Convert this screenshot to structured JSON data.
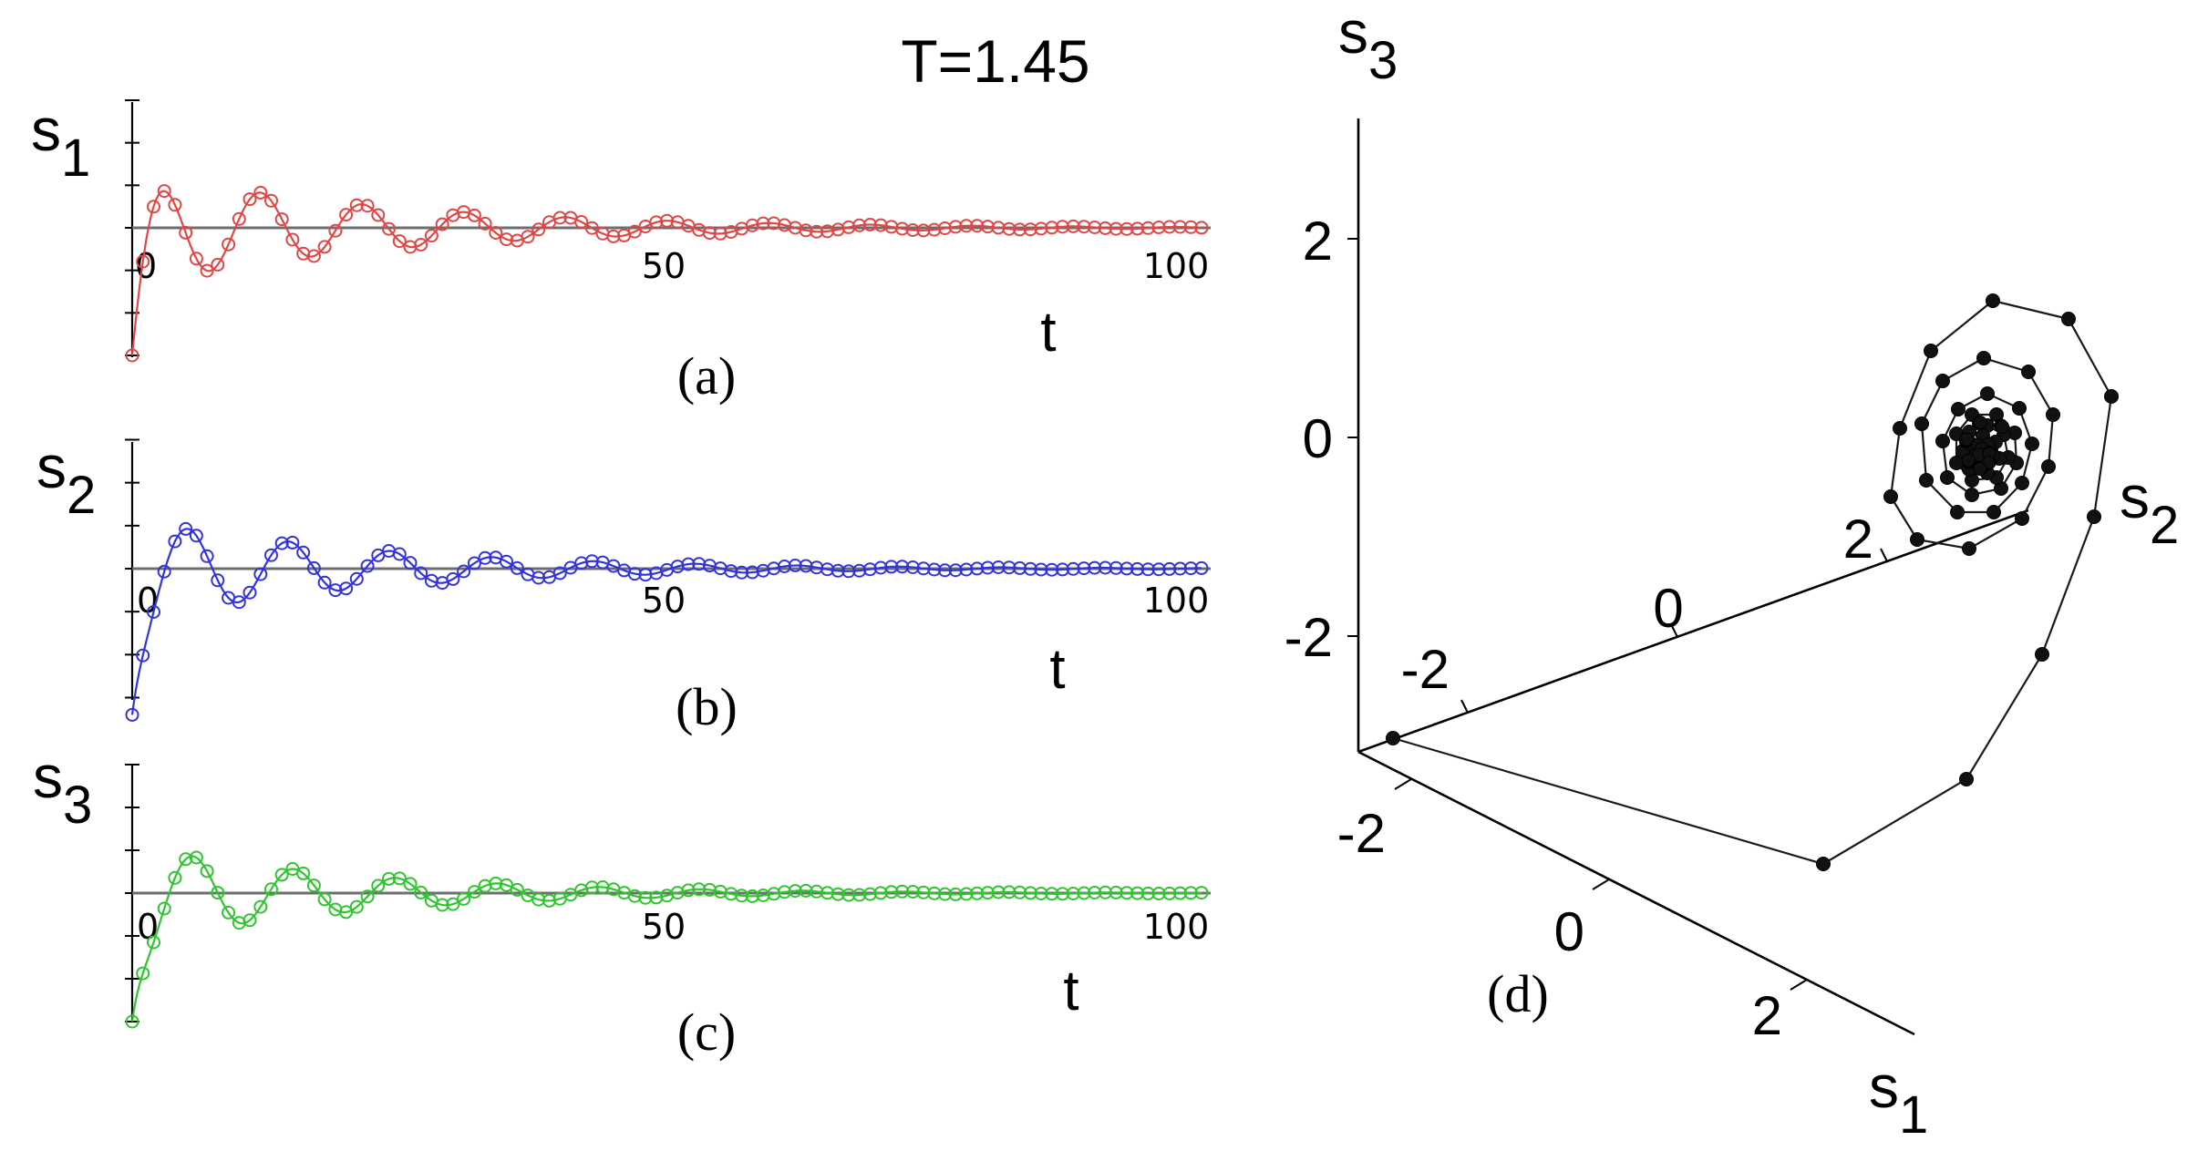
{
  "figure": {
    "title": "T=1.45"
  },
  "chart_data": [
    {
      "type": "line",
      "panel": "a",
      "caption": "(a)",
      "ylabel": "s1",
      "ylabel_base": "s",
      "ylabel_sub": "1",
      "xlabel": "t",
      "xlim": [
        0,
        100
      ],
      "ylim": [
        -3,
        3
      ],
      "x_ticks": [
        0,
        50,
        100
      ],
      "x_tick_labels": [
        "0",
        "50",
        "100"
      ],
      "y_ticks": [
        -3,
        -2,
        -1,
        0,
        1,
        2,
        3
      ],
      "color": "#e04646",
      "params": {
        "x0": -3,
        "amp": 2.5,
        "decay": 0.042,
        "omega": 0.66,
        "phase": -0.12,
        "base": 0.25
      },
      "marker_step": 1.0
    },
    {
      "type": "line",
      "panel": "b",
      "caption": "(b)",
      "ylabel": "s2",
      "ylabel_base": "s",
      "ylabel_sub": "2",
      "xlabel": "t",
      "xlim": [
        0,
        100
      ],
      "ylim": [
        -3,
        3
      ],
      "x_ticks": [
        0,
        50,
        100
      ],
      "x_tick_labels": [
        "0",
        "50",
        "100"
      ],
      "y_ticks": [
        -3,
        -2,
        -1,
        0,
        1,
        2,
        3
      ],
      "color": "#3333dd",
      "params": {
        "x0": -3.4,
        "amp": 2.4,
        "decay": 0.045,
        "omega": 0.66,
        "phase": -1.8,
        "base": 0.5
      },
      "marker_step": 1.0
    },
    {
      "type": "line",
      "panel": "c",
      "caption": "(c)",
      "ylabel": "s3",
      "ylabel_base": "s",
      "ylabel_sub": "3",
      "xlabel": "t",
      "xlim": [
        0,
        100
      ],
      "ylim": [
        -3,
        3
      ],
      "x_ticks": [
        0,
        50,
        100
      ],
      "x_tick_labels": [
        "0",
        "50",
        "100"
      ],
      "y_ticks": [
        -3,
        -2,
        -1,
        0,
        1,
        2,
        3
      ],
      "color": "#2fc52f",
      "params": {
        "x0": -3,
        "amp": 2.3,
        "decay": 0.048,
        "omega": 0.66,
        "phase": -2.1,
        "base": 0.6
      },
      "marker_step": 1.0
    },
    {
      "type": "scatter",
      "panel": "d",
      "caption": "(d)",
      "projection": "3d",
      "axis_labels": [
        {
          "base": "s",
          "sub": "1"
        },
        {
          "base": "s",
          "sub": "2"
        },
        {
          "base": "s",
          "sub": "3"
        }
      ],
      "s1_tick_labels": [
        "-2",
        "0",
        "2"
      ],
      "s2_tick_labels": [
        "-2",
        "0",
        "2"
      ],
      "s3_tick_labels": [
        "2",
        "0",
        "-2"
      ],
      "s3_ticks": [
        2,
        0,
        -2
      ],
      "color": "#000000",
      "start_point": [
        -3,
        -3,
        -3
      ],
      "attractor": [
        0.4,
        0.4,
        0.4
      ]
    }
  ]
}
